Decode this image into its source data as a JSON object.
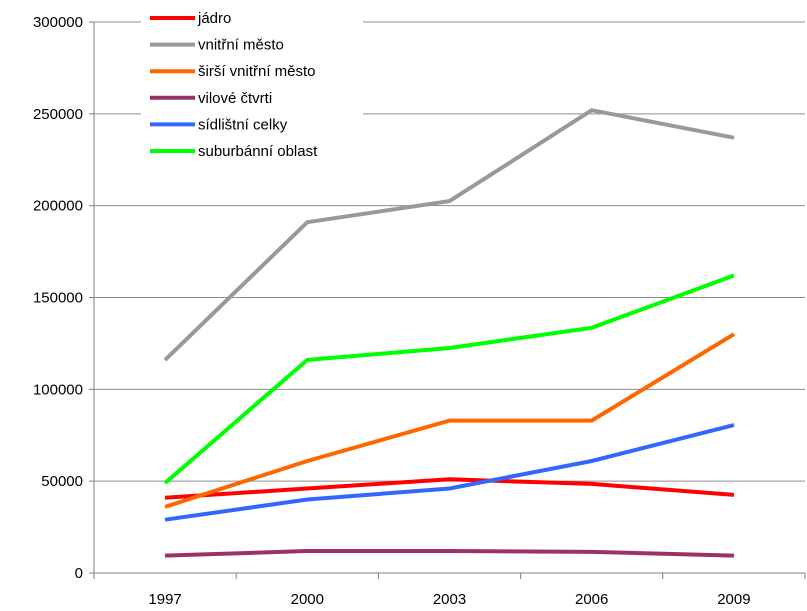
{
  "chart_data": {
    "type": "line",
    "x": [
      "1997",
      "2000",
      "2003",
      "2006",
      "2009"
    ],
    "ylim": [
      0,
      300000
    ],
    "yticks": [
      "0",
      "50000",
      "100000",
      "150000",
      "200000",
      "250000",
      "300000"
    ],
    "grid": "horizontal",
    "legend_position": "top-left",
    "series": [
      {
        "name": "jádro",
        "color": "#ff0000",
        "values": [
          41000,
          46000,
          51000,
          48500,
          42500
        ]
      },
      {
        "name": "vnitřní město",
        "color": "#999999",
        "values": [
          116000,
          191000,
          202500,
          252000,
          237000
        ]
      },
      {
        "name": "širší vnitřní město",
        "color": "#ff6600",
        "values": [
          36000,
          61000,
          83000,
          83000,
          130000
        ]
      },
      {
        "name": "vilové čtvrti",
        "color": "#993366",
        "values": [
          9500,
          12000,
          12000,
          11500,
          9500
        ]
      },
      {
        "name": "sídlištní celky",
        "color": "#3366ff",
        "values": [
          29000,
          40000,
          46000,
          61000,
          80500
        ]
      },
      {
        "name": "suburbánní oblast",
        "color": "#00ff00",
        "values": [
          49000,
          116000,
          122500,
          133500,
          162000
        ]
      }
    ]
  }
}
